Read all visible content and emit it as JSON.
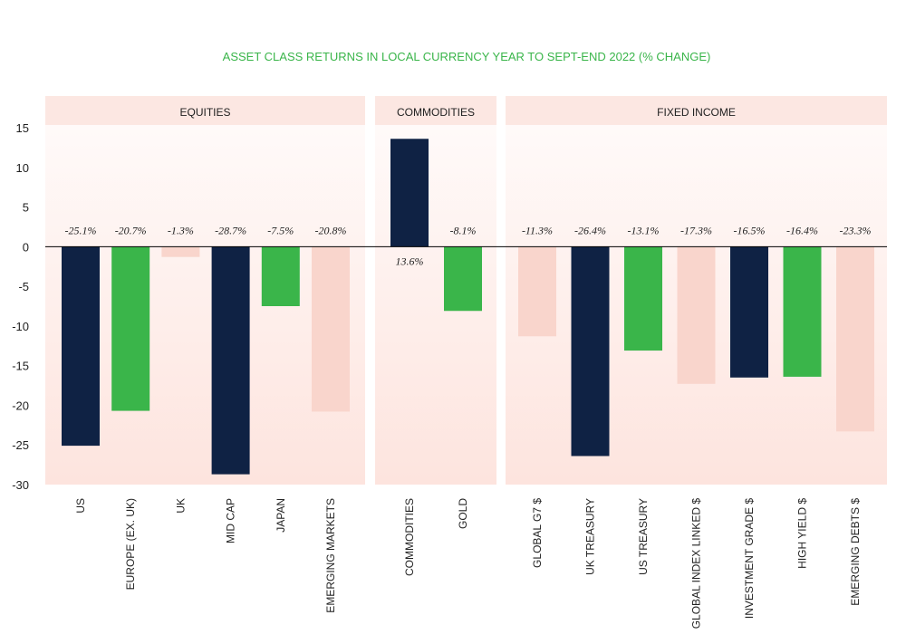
{
  "chart_data": {
    "type": "bar",
    "title": "ASSET CLASS RETURNS IN LOCAL CURRENCY YEAR TO SEPT-END 2022 (% CHANGE)",
    "ylim": [
      -30,
      15
    ],
    "yticks": [
      15,
      10,
      5,
      0,
      -5,
      -10,
      -15,
      -20,
      -25,
      -30
    ],
    "groups": [
      {
        "name": "EQUITIES",
        "categories": [
          "US",
          "EUROPE (EX. UK)",
          "UK",
          "MID CAP",
          "JAPAN",
          "EMERGING MARKETS"
        ],
        "values": [
          -25.1,
          -20.7,
          -1.3,
          -28.7,
          -7.5,
          -20.8
        ],
        "value_labels": [
          "-25.1%",
          "-20.7%",
          "-1.3%",
          "-28.7%",
          "-7.5%",
          "-20.8%"
        ],
        "colors": [
          "#0f2244",
          "#3ab54a",
          "#f9d5cc",
          "#0f2244",
          "#3ab54a",
          "#f9d5cc"
        ]
      },
      {
        "name": "COMMODITIES",
        "categories": [
          "COMMODITIES",
          "GOLD"
        ],
        "values": [
          13.6,
          -8.1
        ],
        "value_labels": [
          "13.6%",
          "-8.1%"
        ],
        "colors": [
          "#0f2244",
          "#3ab54a"
        ]
      },
      {
        "name": "FIXED INCOME",
        "categories": [
          "GLOBAL G7 $",
          "UK TREASURY",
          "US TREASURY",
          "GLOBAL INDEX LINKED $",
          "INVESTMENT GRADE $",
          "HIGH YIELD $",
          "EMERGING DEBTS $"
        ],
        "values": [
          -11.3,
          -26.4,
          -13.1,
          -17.3,
          -16.5,
          -16.4,
          -23.3
        ],
        "value_labels": [
          "-11.3%",
          "-26.4%",
          "-13.1%",
          "-17.3%",
          "-16.5%",
          "-16.4%",
          "-23.3%"
        ],
        "colors": [
          "#f9d5cc",
          "#0f2244",
          "#3ab54a",
          "#f9d5cc",
          "#0f2244",
          "#3ab54a",
          "#f9d5cc"
        ]
      }
    ]
  }
}
